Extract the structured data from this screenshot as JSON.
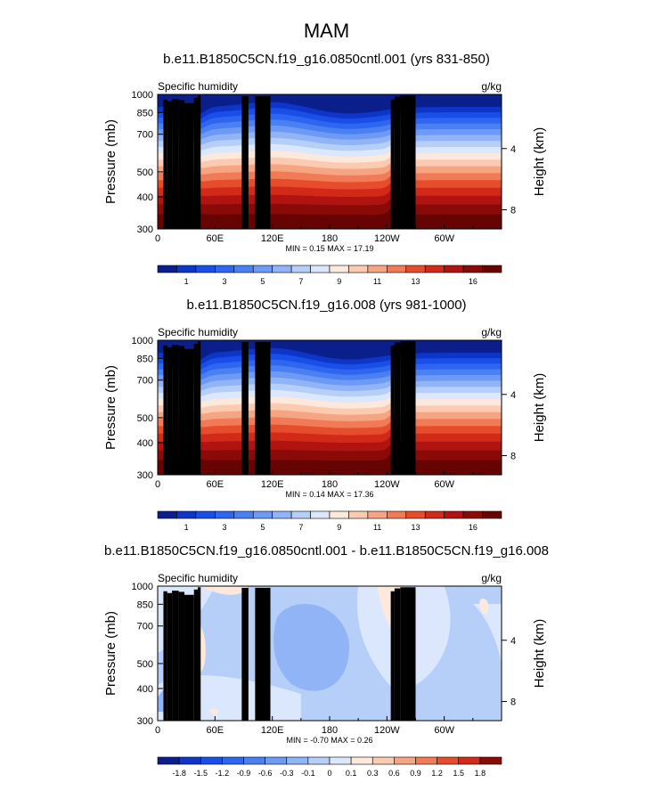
{
  "figure": {
    "title": "MAM"
  },
  "chart_data": [
    {
      "type": "heatmap",
      "title": "b.e11.B1850C5CN.f19_g16.0850cntl.001 (yrs 831-850)",
      "left_label": "Specific humidity",
      "units": "g/kg",
      "ylabel": "Pressure (mb)",
      "ylabel_right": "Height (km)",
      "x_ticks": [
        "0",
        "60E",
        "120E",
        "180",
        "120W",
        "60W"
      ],
      "y_ticks": [
        "300",
        "400",
        "500",
        "700",
        "850",
        "1000"
      ],
      "y_right_ticks": [
        "8",
        "4"
      ],
      "stats": "MIN =   0.15  MAX =  17.19",
      "colorbar_labels": [
        "1",
        "3",
        "5",
        "7",
        "9",
        "11",
        "13",
        "16"
      ],
      "colorbar_colors": [
        "#0a1f8c",
        "#0d36c8",
        "#1a4ee8",
        "#2f66f0",
        "#4a80f2",
        "#6c9af4",
        "#90b4f6",
        "#b6cff9",
        "#dbe7fc",
        "#fde8dc",
        "#fbcab0",
        "#f6a583",
        "#f07b56",
        "#e54d2c",
        "#d22a18",
        "#b01410",
        "#8a0a08",
        "#660404"
      ],
      "values_min": 0.15,
      "values_max": 17.19
    },
    {
      "type": "heatmap",
      "title": "b.e11.B1850C5CN.f19_g16.008 (yrs 981-1000)",
      "left_label": "Specific humidity",
      "units": "g/kg",
      "ylabel": "Pressure (mb)",
      "ylabel_right": "Height (km)",
      "x_ticks": [
        "0",
        "60E",
        "120E",
        "180",
        "120W",
        "60W"
      ],
      "y_ticks": [
        "300",
        "400",
        "500",
        "700",
        "850",
        "1000"
      ],
      "y_right_ticks": [
        "8",
        "4"
      ],
      "stats": "MIN =   0.14  MAX =  17.36",
      "colorbar_labels": [
        "1",
        "3",
        "5",
        "7",
        "9",
        "11",
        "13",
        "16"
      ],
      "colorbar_colors": [
        "#0a1f8c",
        "#0d36c8",
        "#1a4ee8",
        "#2f66f0",
        "#4a80f2",
        "#6c9af4",
        "#90b4f6",
        "#b6cff9",
        "#dbe7fc",
        "#fde8dc",
        "#fbcab0",
        "#f6a583",
        "#f07b56",
        "#e54d2c",
        "#d22a18",
        "#b01410",
        "#8a0a08",
        "#660404"
      ],
      "values_min": 0.14,
      "values_max": 17.36
    },
    {
      "type": "heatmap",
      "title": "b.e11.B1850C5CN.f19_g16.0850cntl.001 - b.e11.B1850C5CN.f19_g16.008",
      "left_label": "Specific humidity",
      "units": "g/kg",
      "ylabel": "Pressure (mb)",
      "ylabel_right": "Height (km)",
      "x_ticks": [
        "0",
        "60E",
        "120E",
        "180",
        "120W",
        "60W"
      ],
      "y_ticks": [
        "300",
        "400",
        "500",
        "700",
        "850",
        "1000"
      ],
      "y_right_ticks": [
        "8",
        "4"
      ],
      "stats": "MIN =  -0.70  MAX =   0.26",
      "colorbar_labels": [
        "-1.8",
        "-1.5",
        "-1.2",
        "-0.9",
        "-0.6",
        "-0.3",
        "-0.1",
        "0",
        "0.1",
        "0.3",
        "0.6",
        "0.9",
        "1.2",
        "1.5",
        "1.8"
      ],
      "colorbar_colors": [
        "#0a1f8c",
        "#0d36c8",
        "#1a4ee8",
        "#2f66f0",
        "#4a80f2",
        "#6c9af4",
        "#90b4f6",
        "#b6cff9",
        "#dbe7fc",
        "#fde8dc",
        "#fbcab0",
        "#f6a583",
        "#f07b56",
        "#e54d2c",
        "#d22a18",
        "#8a0a08"
      ],
      "values_min": -0.7,
      "values_max": 0.26
    }
  ]
}
